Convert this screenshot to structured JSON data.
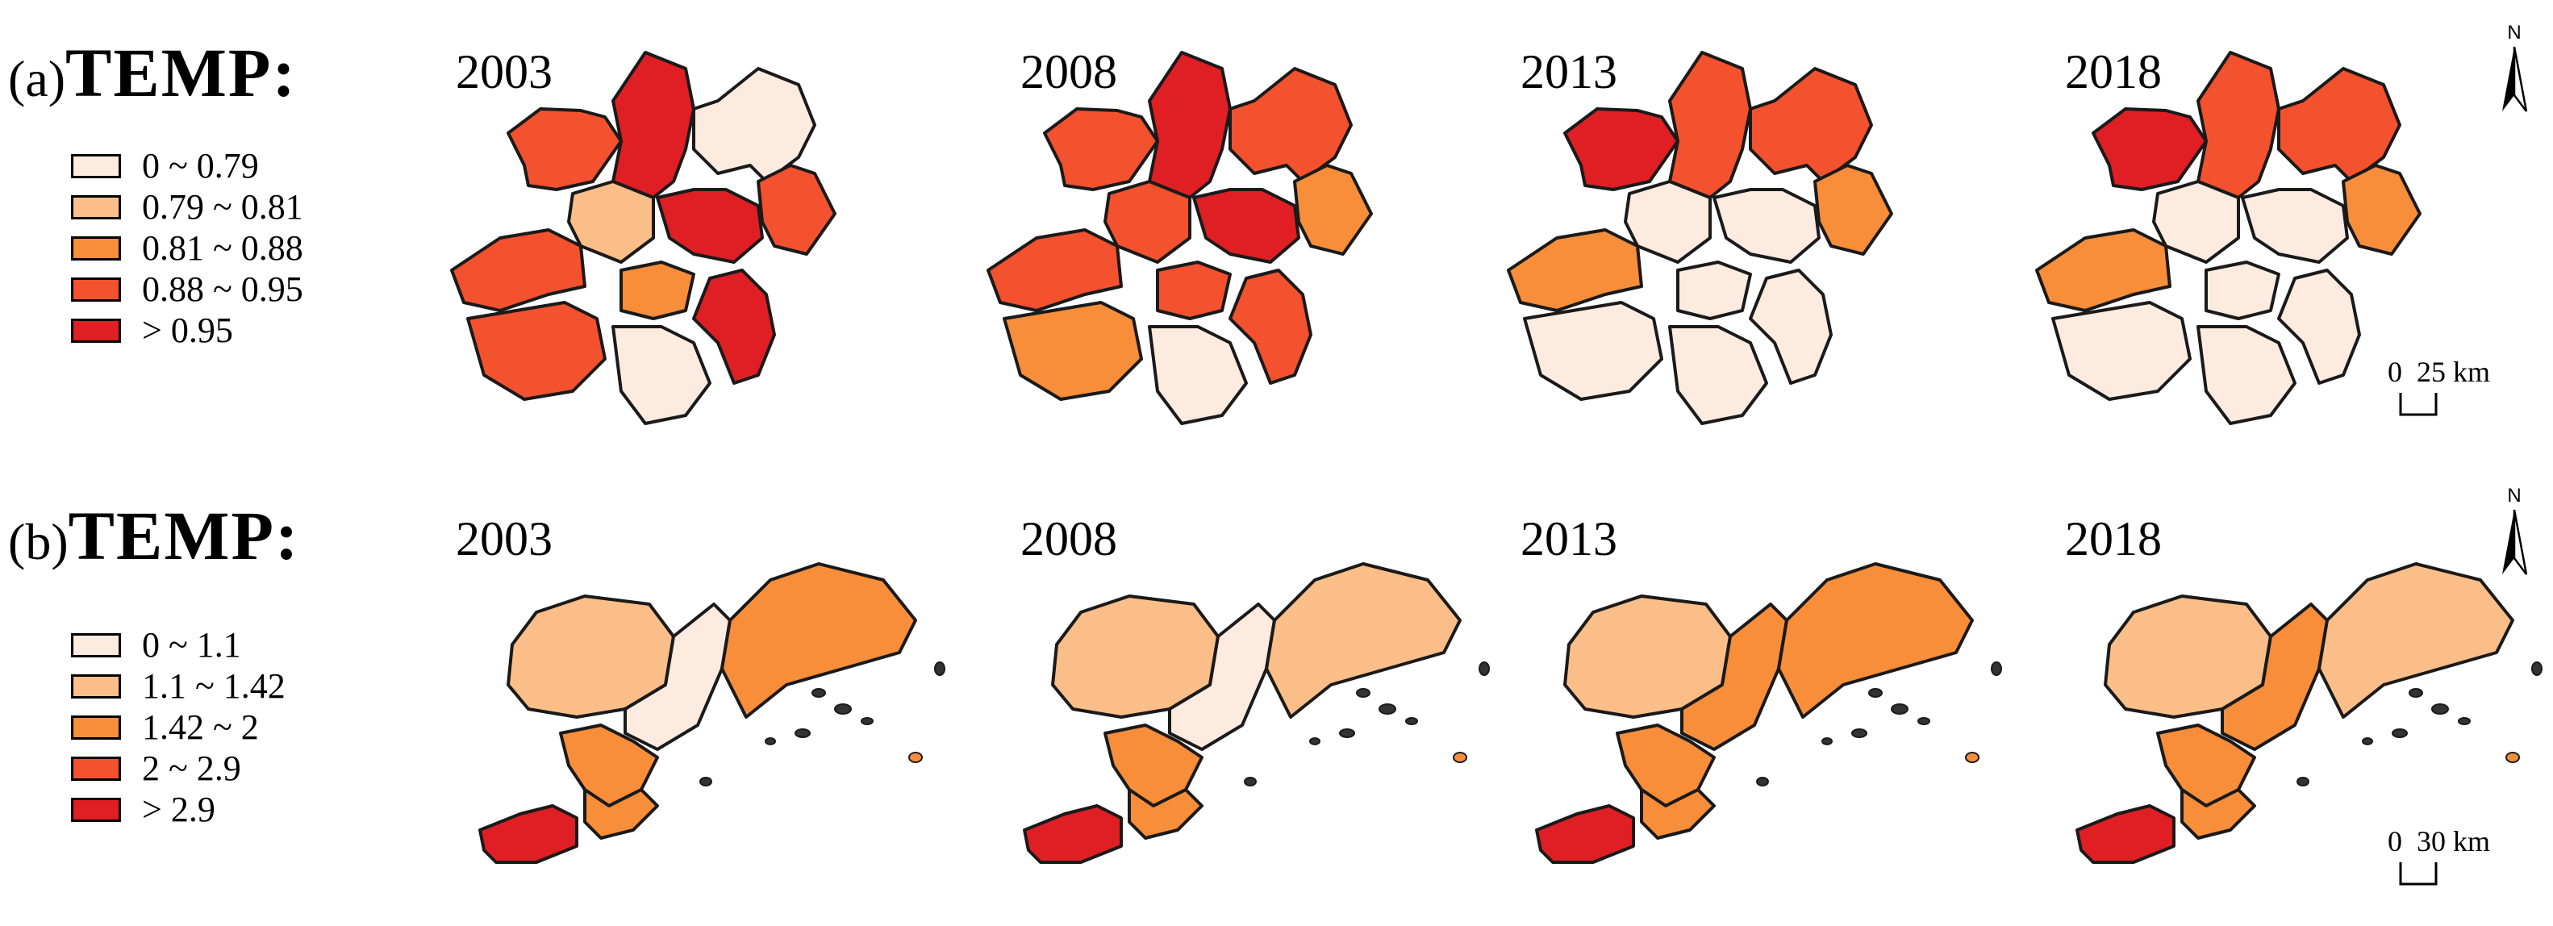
{
  "panels": [
    {
      "id": "a",
      "label": "(a)",
      "variable": "TEMP:",
      "legend": [
        {
          "label": "0 ~ 0.79",
          "color": "#fdebe0"
        },
        {
          "label": "0.79 ~ 0.81",
          "color": "#fcbe88"
        },
        {
          "label": "0.81 ~ 0.88",
          "color": "#f88d3a"
        },
        {
          "label": "0.88 ~ 0.95",
          "color": "#f4512e"
        },
        {
          "label": "> 0.95",
          "color": "#df1f24"
        }
      ],
      "years": [
        "2003",
        "2008",
        "2013",
        "2018"
      ],
      "scale_label": "0  25 km",
      "region_classes": [
        [
          3,
          4,
          0,
          3,
          4,
          1,
          3,
          3,
          2,
          4,
          0
        ],
        [
          3,
          4,
          3,
          2,
          4,
          3,
          3,
          2,
          3,
          3,
          0
        ],
        [
          4,
          3,
          3,
          2,
          0,
          0,
          2,
          0,
          0,
          0,
          0
        ],
        [
          4,
          3,
          3,
          2,
          0,
          0,
          2,
          0,
          0,
          0,
          0
        ]
      ]
    },
    {
      "id": "b",
      "label": "(b)",
      "variable": "TEMP:",
      "legend": [
        {
          "label": "0 ~ 1.1",
          "color": "#fdebe0"
        },
        {
          "label": "1.1 ~ 1.42",
          "color": "#fcbe88"
        },
        {
          "label": "1.42 ~ 2",
          "color": "#f88d3a"
        },
        {
          "label": "2 ~ 2.9",
          "color": "#f4512e"
        },
        {
          "label": "> 2.9",
          "color": "#df1f24"
        }
      ],
      "years": [
        "2003",
        "2008",
        "2013",
        "2018"
      ],
      "scale_label": "0  30 km",
      "region_classes": [
        [
          1,
          0,
          2,
          2,
          4,
          2
        ],
        [
          1,
          0,
          1,
          2,
          4,
          2
        ],
        [
          1,
          2,
          2,
          2,
          4,
          2
        ],
        [
          1,
          2,
          1,
          2,
          4,
          2
        ]
      ]
    }
  ],
  "north_label": "N"
}
